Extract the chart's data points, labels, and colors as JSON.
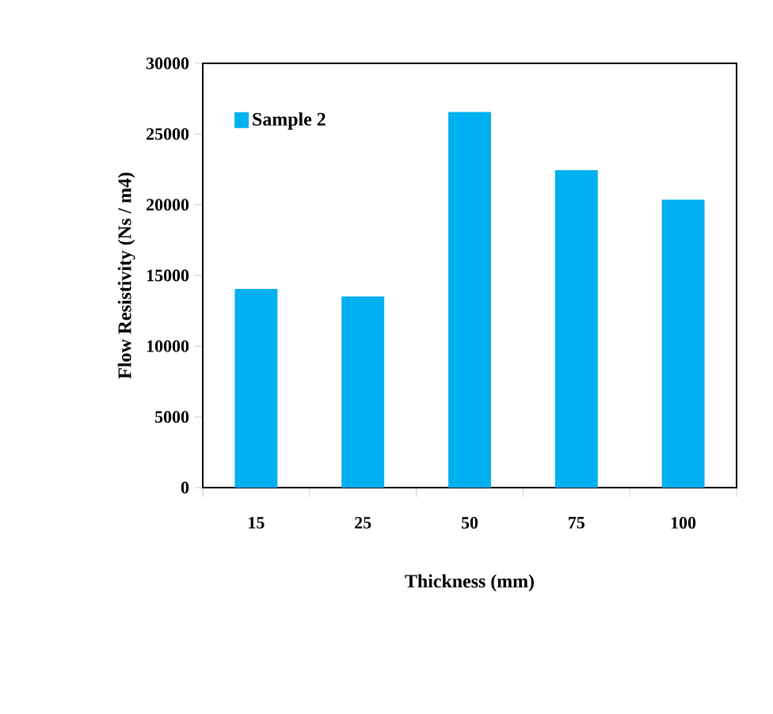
{
  "chart_data": {
    "type": "bar",
    "xlabel": "Thickness (mm)",
    "ylabel": "Flow Resistivity (Ns / m4)",
    "categories": [
      "15",
      "25",
      "50",
      "75",
      "100"
    ],
    "series": [
      {
        "name": "Sample 2",
        "color": "#00b0f0",
        "values": [
          14050,
          13520,
          26560,
          22450,
          20360
        ]
      }
    ],
    "ylim": [
      0,
      30000
    ],
    "yticks": [
      0,
      5000,
      10000,
      15000,
      20000,
      25000,
      30000
    ],
    "grid": false,
    "legend": "top left"
  }
}
